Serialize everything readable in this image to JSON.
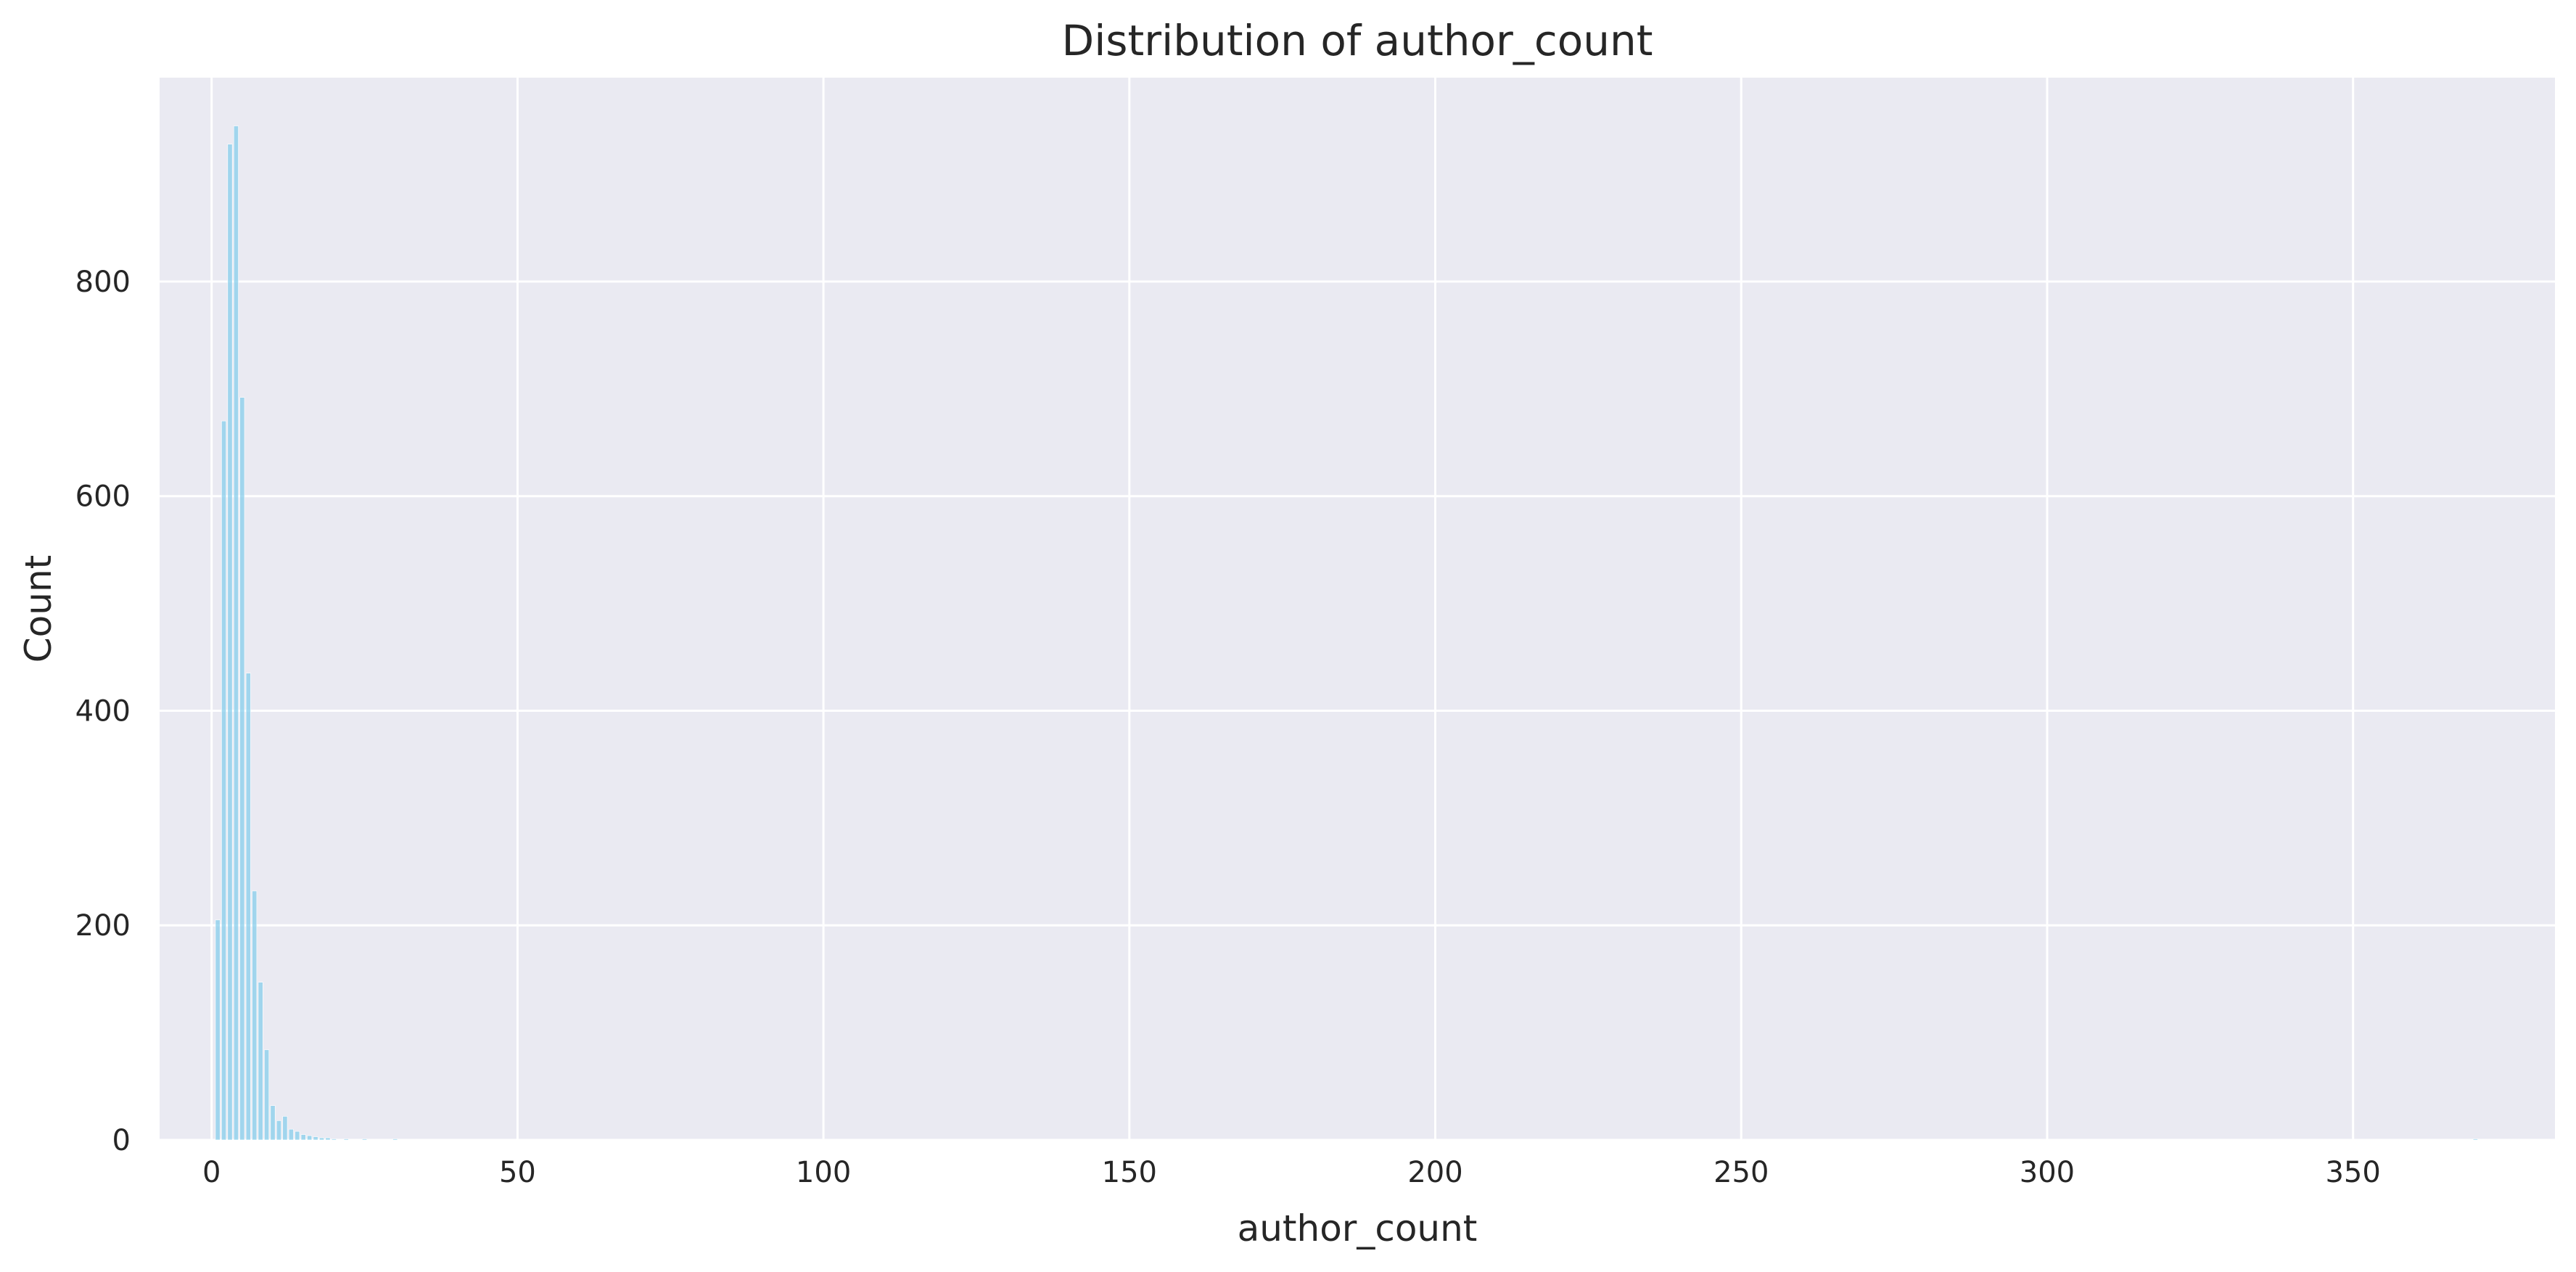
{
  "chart_data": {
    "type": "bar",
    "title": "Distribution of author_count",
    "xlabel": "author_count",
    "ylabel": "Count",
    "xlim": [
      -8.5,
      383
    ],
    "ylim": [
      0,
      990
    ],
    "x_ticks": [
      0,
      50,
      100,
      150,
      200,
      250,
      300,
      350
    ],
    "y_ticks": [
      0,
      200,
      400,
      600,
      800
    ],
    "grid": true,
    "legend": "none",
    "bar_width": 0.75,
    "colors": {
      "plot_background": "#eaeaf2",
      "grid": "#ffffff",
      "bar_fill": "#87ceeb",
      "bar_edge": "#ffffff",
      "text": "#262626"
    },
    "bins": [
      {
        "x": 1,
        "count": 205
      },
      {
        "x": 2,
        "count": 670
      },
      {
        "x": 3,
        "count": 928
      },
      {
        "x": 4,
        "count": 945
      },
      {
        "x": 5,
        "count": 692
      },
      {
        "x": 6,
        "count": 435
      },
      {
        "x": 7,
        "count": 232
      },
      {
        "x": 8,
        "count": 147
      },
      {
        "x": 9,
        "count": 84
      },
      {
        "x": 10,
        "count": 32
      },
      {
        "x": 11,
        "count": 18
      },
      {
        "x": 12,
        "count": 22
      },
      {
        "x": 13,
        "count": 10
      },
      {
        "x": 14,
        "count": 8
      },
      {
        "x": 15,
        "count": 5
      },
      {
        "x": 16,
        "count": 4
      },
      {
        "x": 17,
        "count": 3
      },
      {
        "x": 18,
        "count": 2
      },
      {
        "x": 19,
        "count": 2
      },
      {
        "x": 20,
        "count": 1
      },
      {
        "x": 22,
        "count": 1
      },
      {
        "x": 25,
        "count": 1
      },
      {
        "x": 30,
        "count": 1
      },
      {
        "x": 370,
        "count": 1
      }
    ]
  }
}
